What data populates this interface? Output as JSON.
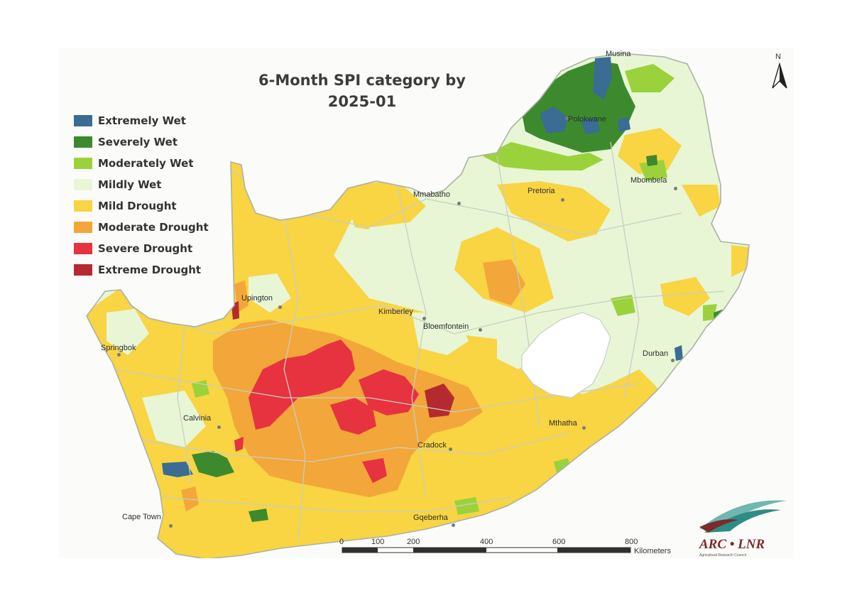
{
  "title_line1": "6-Month SPI category by",
  "title_line2": "2025-01",
  "colors": {
    "extremely_wet": "#3a6c94",
    "severely_wet": "#3d8a2e",
    "moderately_wet": "#9bd23c",
    "mildly_wet": "#e8f6d6",
    "mild_drought": "#f9d443",
    "moderate_drought": "#f3a63a",
    "severe_drought": "#e6333f",
    "extreme_drought": "#b52a2f",
    "background": "#fbfcf9",
    "boundary": "#c7cfc2",
    "lesotho": "#ffffff"
  },
  "legend": [
    {
      "label": "Extremely Wet",
      "color_key": "extremely_wet"
    },
    {
      "label": "Severely Wet",
      "color_key": "severely_wet"
    },
    {
      "label": "Moderately Wet",
      "color_key": "moderately_wet"
    },
    {
      "label": "Mildly Wet",
      "color_key": "mildly_wet"
    },
    {
      "label": "Mild Drought",
      "color_key": "mild_drought"
    },
    {
      "label": "Moderate Drought",
      "color_key": "moderate_drought"
    },
    {
      "label": "Severe Drought",
      "color_key": "severe_drought"
    },
    {
      "label": "Extreme Drought",
      "color_key": "extreme_drought"
    }
  ],
  "cities": {
    "musina": "Musina",
    "polokwane": "Polokwane",
    "mmabatho": "Mmabatho",
    "pretoria": "Pretoria",
    "mbombela": "Mbombela",
    "upington": "Upington",
    "kimberley": "Kimberley",
    "bloemfontein": "Bloemfontein",
    "springbok": "Springbok",
    "durban": "Durban",
    "calvinia": "Calvinia",
    "mthatha": "Mthatha",
    "cradock": "Cradock",
    "cape_town": "Cape Town",
    "gqeberha": "Gqeberha"
  },
  "north_label": "N",
  "scale": {
    "ticks": [
      "0",
      "100",
      "200",
      "400",
      "600",
      "800"
    ],
    "unit": "Kilometers"
  },
  "logo": {
    "text": "ARC • LNR",
    "subtitle": "Agricultural Research Council"
  }
}
